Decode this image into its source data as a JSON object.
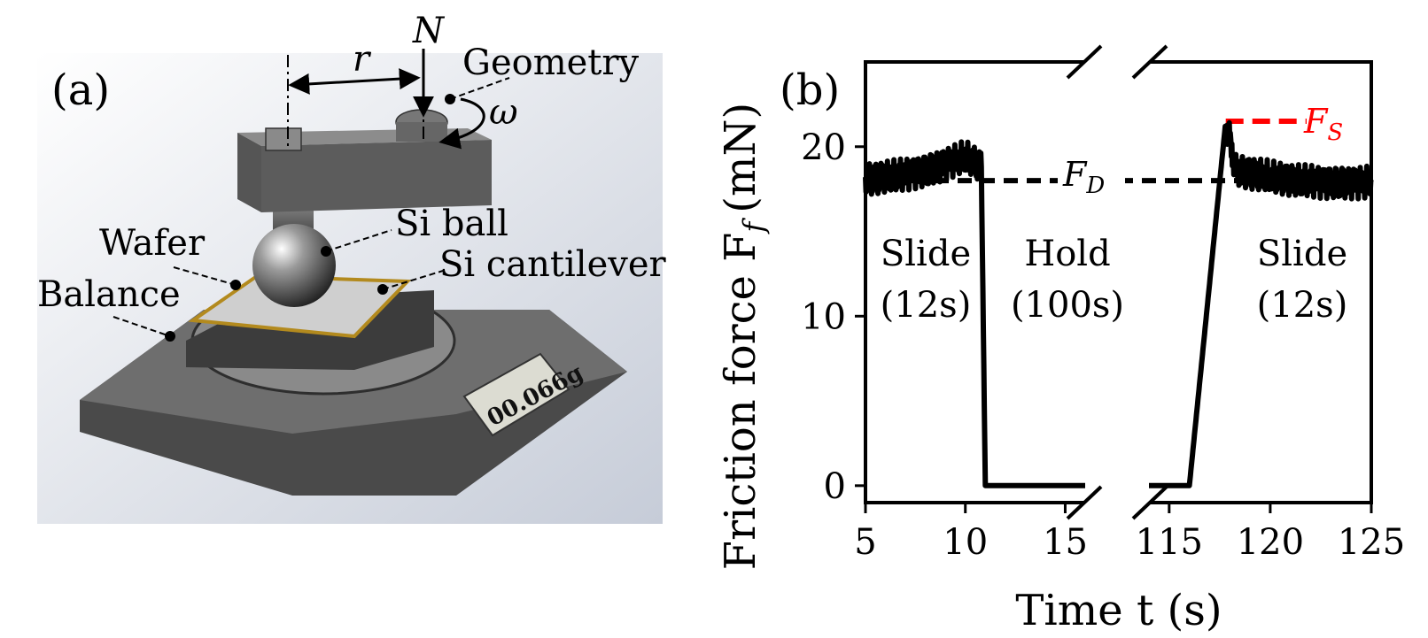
{
  "panel_a": {
    "label": "(a)",
    "callouts": {
      "normal_force": "N",
      "radius": "r",
      "geometry": "Geometry",
      "omega": "ω",
      "si_ball": "Si ball",
      "wafer": "Wafer",
      "si_cantilever": "Si cantilever",
      "balance": "Balance"
    },
    "display_reading": "00.066g"
  },
  "colors": {
    "trace": "#000000",
    "static_marker": "#ff0000",
    "scene_bg": "#d8dde6"
  },
  "chart_data": {
    "type": "line",
    "panel_label": "(b)",
    "xlabel": "Time t (s)",
    "ylabel": "Friction force F",
    "ylabel_subscript": "f",
    "ylabel_unit": "(mN)",
    "broken_x_axis": true,
    "x_segments": [
      {
        "range": [
          5,
          16
        ],
        "ticks": [
          5,
          10,
          15
        ]
      },
      {
        "range": [
          114,
          125
        ],
        "ticks": [
          115,
          120,
          125
        ]
      }
    ],
    "ylim": [
      -1,
      25
    ],
    "yticks": [
      0,
      10,
      20
    ],
    "grid": false,
    "series": [
      {
        "segment": 0,
        "x": [
          5,
          6,
          7,
          8,
          9,
          10,
          10.8,
          11,
          16
        ],
        "y": [
          18,
          18.2,
          18.4,
          18.6,
          19,
          19.4,
          18.8,
          0,
          0
        ]
      },
      {
        "segment": 1,
        "x": [
          114,
          116,
          117.8,
          118.3,
          119,
          120,
          121,
          122,
          123,
          124,
          125
        ],
        "y": [
          0,
          0,
          21.5,
          18.6,
          18.4,
          18.2,
          18,
          18,
          17.9,
          17.9,
          17.9
        ]
      }
    ],
    "reference_lines": [
      {
        "name": "F",
        "subscript": "D",
        "y": 18
      },
      {
        "name": "F",
        "subscript": "S",
        "y": 21.5
      }
    ],
    "regions": [
      {
        "label": "Slide",
        "duration": "(12s)"
      },
      {
        "label": "Hold",
        "duration": "(100s)"
      },
      {
        "label": "Slide",
        "duration": "(12s)"
      }
    ],
    "xtick_labels": [
      "5",
      "10",
      "15",
      "115",
      "120",
      "125"
    ],
    "ytick_labels": [
      "0",
      "10",
      "20"
    ]
  }
}
